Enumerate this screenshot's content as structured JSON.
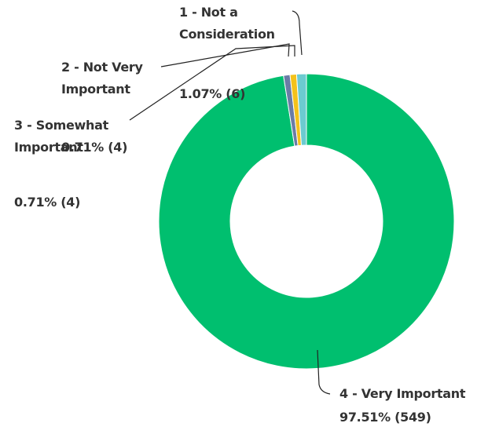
{
  "chart_data": {
    "type": "donut",
    "categories": [
      "1 - Not a Consideration",
      "2 - Not Very Important",
      "3 - Somewhat Important",
      "4 - Very Important"
    ],
    "values": [
      1.07,
      0.71,
      0.71,
      97.51
    ],
    "value_labels": [
      "1.07% (6)",
      "0.71% (4)",
      "0.71% (4)",
      "97.51% (549)"
    ],
    "colors": [
      "#6ccbd0",
      "#f4c21b",
      "#6a7ca6",
      "#00bf6f"
    ]
  }
}
